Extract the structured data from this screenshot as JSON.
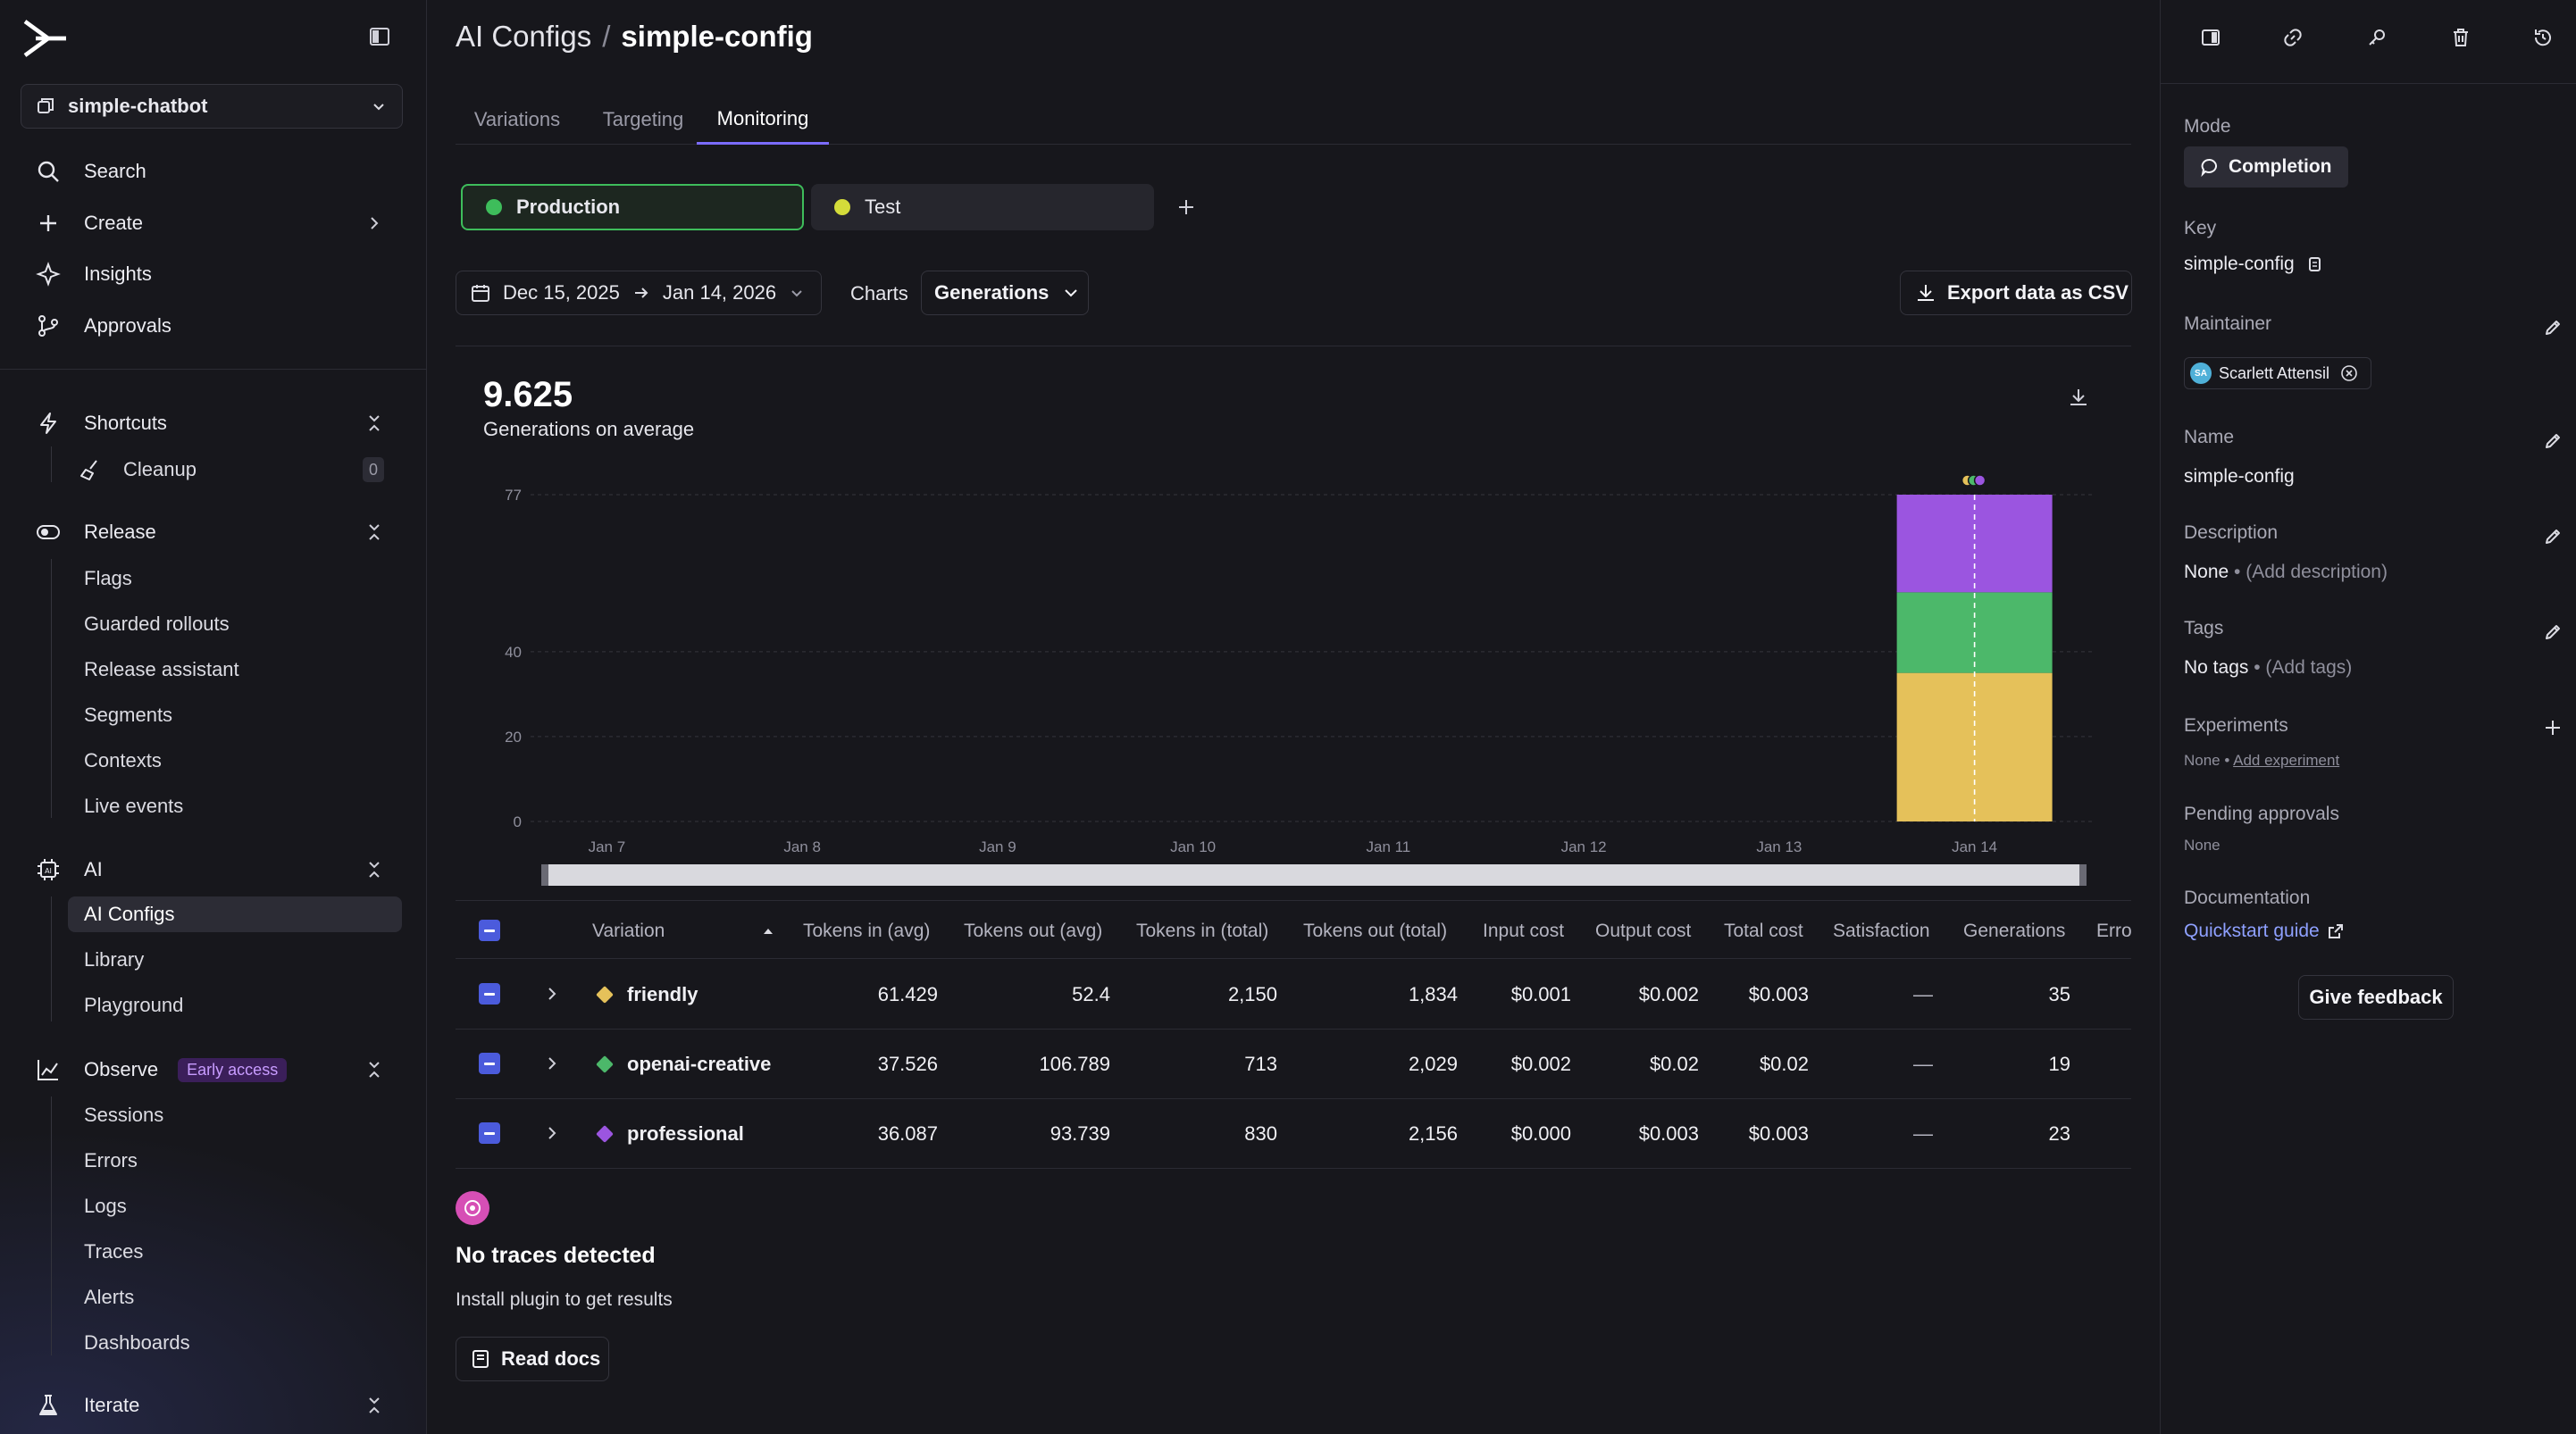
{
  "sidebar": {
    "project": "simple-chatbot",
    "nav": [
      {
        "label": "Search",
        "icon": "search-icon"
      },
      {
        "label": "Create",
        "icon": "plus-icon"
      },
      {
        "label": "Insights",
        "icon": "sparkle-icon"
      },
      {
        "label": "Approvals",
        "icon": "branch-icon"
      }
    ],
    "shortcuts": {
      "label": "Shortcuts",
      "items": [
        {
          "label": "Cleanup",
          "count": "0"
        }
      ]
    },
    "release": {
      "label": "Release",
      "items": [
        "Flags",
        "Guarded rollouts",
        "Release assistant",
        "Segments",
        "Contexts",
        "Live events"
      ]
    },
    "ai": {
      "label": "AI",
      "items": [
        "AI Configs",
        "Library",
        "Playground"
      ]
    },
    "observe": {
      "label": "Observe",
      "badge": "Early access",
      "items": [
        "Sessions",
        "Errors",
        "Logs",
        "Traces",
        "Alerts",
        "Dashboards"
      ]
    },
    "iterate": {
      "label": "Iterate"
    }
  },
  "header": {
    "crumb": "AI Configs",
    "separator": "/",
    "title": "simple-config"
  },
  "tabs": [
    "Variations",
    "Targeting",
    "Monitoring"
  ],
  "active_tab": "Monitoring",
  "environments": [
    {
      "label": "Production",
      "color": "#3ebd5b"
    },
    {
      "label": "Test",
      "color": "#d4dc3a"
    }
  ],
  "filters": {
    "date_start": "Dec 15, 2025",
    "date_end": "Jan 14, 2026",
    "charts_label": "Charts",
    "chart_select": "Generations",
    "export_label": "Export data as CSV"
  },
  "kpi": {
    "value": "9.625",
    "label": "Generations on average"
  },
  "chart_data": {
    "type": "bar",
    "stacked": true,
    "categories": [
      "Jan 7",
      "Jan 8",
      "Jan 9",
      "Jan 10",
      "Jan 11",
      "Jan 12",
      "Jan 13",
      "Jan 14"
    ],
    "series": [
      {
        "name": "friendly",
        "color": "#e5c15a",
        "values": [
          0,
          0,
          0,
          0,
          0,
          0,
          0,
          35
        ]
      },
      {
        "name": "openai-creative",
        "color": "#4cb86a",
        "values": [
          0,
          0,
          0,
          0,
          0,
          0,
          0,
          19
        ]
      },
      {
        "name": "professional",
        "color": "#9b55e0",
        "values": [
          0,
          0,
          0,
          0,
          0,
          0,
          0,
          23
        ]
      }
    ],
    "yticks": [
      "0",
      "20",
      "40",
      "77"
    ],
    "ylim": [
      0,
      77
    ],
    "grid": true
  },
  "table": {
    "columns": [
      "Variation",
      "Tokens in (avg)",
      "Tokens out (avg)",
      "Tokens in (total)",
      "Tokens out (total)",
      "Input cost",
      "Output cost",
      "Total cost",
      "Satisfaction",
      "Generations",
      "Erro"
    ],
    "rows": [
      {
        "name": "friendly",
        "color": "#e5c15a",
        "tin_avg": "61.429",
        "tout_avg": "52.4",
        "tin_total": "2,150",
        "tout_total": "1,834",
        "in_cost": "$0.001",
        "out_cost": "$0.002",
        "total_cost": "$0.003",
        "satisfaction": "—",
        "generations": "35"
      },
      {
        "name": "openai-creative",
        "color": "#4cb86a",
        "tin_avg": "37.526",
        "tout_avg": "106.789",
        "tin_total": "713",
        "tout_total": "2,029",
        "in_cost": "$0.002",
        "out_cost": "$0.02",
        "total_cost": "$0.02",
        "satisfaction": "—",
        "generations": "19"
      },
      {
        "name": "professional",
        "color": "#9b55e0",
        "tin_avg": "36.087",
        "tout_avg": "93.739",
        "tin_total": "830",
        "tout_total": "2,156",
        "in_cost": "$0.000",
        "out_cost": "$0.003",
        "total_cost": "$0.003",
        "satisfaction": "—",
        "generations": "23"
      }
    ]
  },
  "traces": {
    "title": "No traces detected",
    "subtitle": "Install plugin to get results",
    "button": "Read docs"
  },
  "details": {
    "mode_label": "Mode",
    "mode_value": "Completion",
    "key_label": "Key",
    "key_value": "simple-config",
    "maintainer_label": "Maintainer",
    "maintainer_initials": "SA",
    "maintainer_name": "Scarlett Attensil",
    "name_label": "Name",
    "name_value": "simple-config",
    "description_label": "Description",
    "description_value": "None",
    "description_add": "(Add description)",
    "tags_label": "Tags",
    "tags_value": "No tags",
    "tags_add": "(Add tags)",
    "experiments_label": "Experiments",
    "experiments_value": "None",
    "experiments_add": "Add experiment",
    "pending_label": "Pending approvals",
    "pending_value": "None",
    "docs_label": "Documentation",
    "docs_link": "Quickstart guide",
    "feedback": "Give feedback"
  }
}
